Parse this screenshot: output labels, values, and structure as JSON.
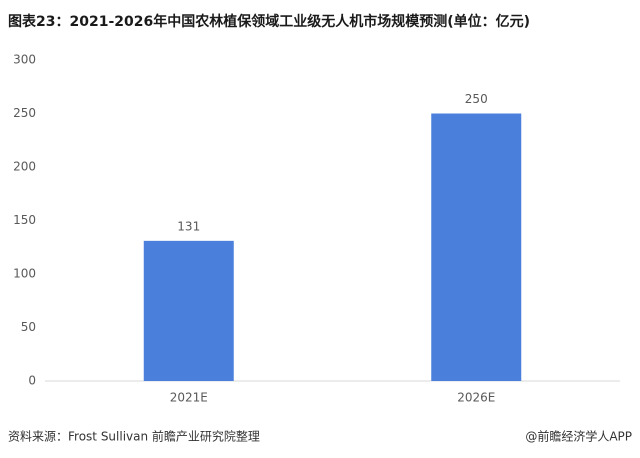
{
  "chart_data": {
    "type": "bar",
    "title": "图表23：2021-2026年中国农林植保领域工业级无人机市场规模预测(单位：亿元)",
    "categories": [
      "2021E",
      "2026E"
    ],
    "values": [
      131,
      250
    ],
    "color": "#4a80dc",
    "ylim": [
      0,
      300
    ],
    "yticks": [
      0,
      50,
      100,
      150,
      200,
      250,
      300
    ],
    "grid": false,
    "source": "资料来源：Frost Sullivan 前瞻产业研究院整理",
    "credit": "@前瞻经济学人APP"
  }
}
